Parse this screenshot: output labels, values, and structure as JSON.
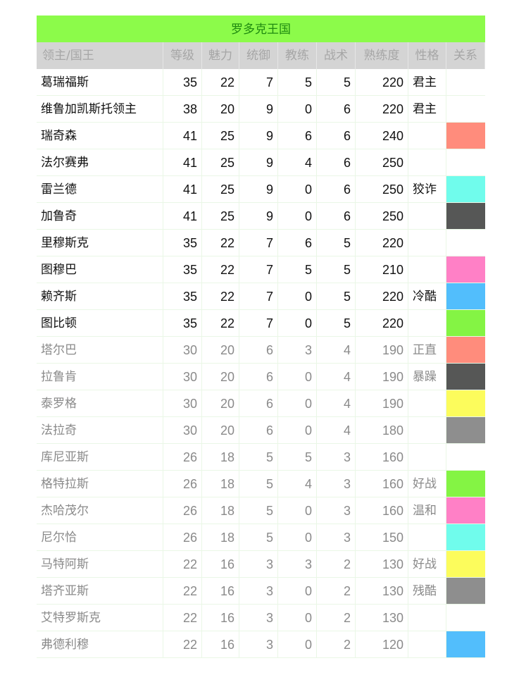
{
  "title": "罗多克王国",
  "headers": [
    "领主/国王",
    "等级",
    "魅力",
    "统御",
    "教练",
    "战术",
    "熟练度",
    "性格",
    "关系"
  ],
  "rows": [
    {
      "name": "葛瑞福斯",
      "v": [
        "35",
        "22",
        "7",
        "5",
        "5",
        "220"
      ],
      "trait": "君主",
      "rel": "",
      "active": true
    },
    {
      "name": "维鲁加凯斯托领主",
      "v": [
        "38",
        "20",
        "9",
        "0",
        "6",
        "220"
      ],
      "trait": "君主",
      "rel": "",
      "active": true
    },
    {
      "name": "瑞奇森",
      "v": [
        "41",
        "25",
        "9",
        "6",
        "6",
        "240"
      ],
      "trait": "",
      "rel": "#FF8C7C",
      "active": true
    },
    {
      "name": "法尔赛弗",
      "v": [
        "41",
        "25",
        "9",
        "4",
        "6",
        "250"
      ],
      "trait": "",
      "rel": "",
      "active": true
    },
    {
      "name": "雷兰德",
      "v": [
        "41",
        "25",
        "9",
        "0",
        "6",
        "250"
      ],
      "trait": "狡诈",
      "rel": "#70FCEC",
      "active": true
    },
    {
      "name": "加鲁奇",
      "v": [
        "41",
        "25",
        "9",
        "0",
        "6",
        "250"
      ],
      "trait": "",
      "rel": "#565756",
      "active": true
    },
    {
      "name": "里穆斯克",
      "v": [
        "35",
        "22",
        "7",
        "6",
        "5",
        "220"
      ],
      "trait": "",
      "rel": "",
      "active": true
    },
    {
      "name": "图穆巴",
      "v": [
        "35",
        "22",
        "7",
        "5",
        "5",
        "210"
      ],
      "trait": "",
      "rel": "#FF80C6",
      "active": true
    },
    {
      "name": "赖齐斯",
      "v": [
        "35",
        "22",
        "7",
        "0",
        "5",
        "220"
      ],
      "trait": "冷酷",
      "rel": "#52BEFC",
      "active": true
    },
    {
      "name": "图比顿",
      "v": [
        "35",
        "22",
        "7",
        "0",
        "5",
        "220"
      ],
      "trait": "",
      "rel": "#84F444",
      "active": true
    },
    {
      "name": "塔尔巴",
      "v": [
        "30",
        "20",
        "6",
        "3",
        "4",
        "190"
      ],
      "trait": "正直",
      "rel": "#FF8C7C",
      "active": false
    },
    {
      "name": "拉鲁肯",
      "v": [
        "30",
        "20",
        "6",
        "0",
        "4",
        "190"
      ],
      "trait": "暴躁",
      "rel": "#565756",
      "active": false
    },
    {
      "name": "泰罗格",
      "v": [
        "30",
        "20",
        "6",
        "0",
        "4",
        "190"
      ],
      "trait": "",
      "rel": "#FCFC5C",
      "active": false
    },
    {
      "name": "法拉奇",
      "v": [
        "30",
        "20",
        "6",
        "0",
        "4",
        "180"
      ],
      "trait": "",
      "rel": "#8E8E8E",
      "active": false
    },
    {
      "name": "库尼亚斯",
      "v": [
        "26",
        "18",
        "5",
        "5",
        "3",
        "160"
      ],
      "trait": "",
      "rel": "",
      "active": false
    },
    {
      "name": "格特拉斯",
      "v": [
        "26",
        "18",
        "5",
        "4",
        "3",
        "160"
      ],
      "trait": "好战",
      "rel": "#84F444",
      "active": false
    },
    {
      "name": "杰哈茂尔",
      "v": [
        "26",
        "18",
        "5",
        "0",
        "3",
        "160"
      ],
      "trait": "温和",
      "rel": "#FF80C6",
      "active": false
    },
    {
      "name": "尼尔恰",
      "v": [
        "26",
        "18",
        "5",
        "0",
        "3",
        "150"
      ],
      "trait": "",
      "rel": "#70FCEC",
      "active": false
    },
    {
      "name": "马特阿斯",
      "v": [
        "22",
        "16",
        "3",
        "3",
        "2",
        "130"
      ],
      "trait": "好战",
      "rel": "#FCFC5C",
      "active": false
    },
    {
      "name": "塔齐亚斯",
      "v": [
        "22",
        "16",
        "3",
        "0",
        "2",
        "130"
      ],
      "trait": "残酷",
      "rel": "#8E8E8E",
      "active": false
    },
    {
      "name": "艾特罗斯克",
      "v": [
        "22",
        "16",
        "3",
        "0",
        "2",
        "130"
      ],
      "trait": "",
      "rel": "",
      "active": false
    },
    {
      "name": "弗德利穆",
      "v": [
        "22",
        "16",
        "3",
        "0",
        "2",
        "120"
      ],
      "trait": "",
      "rel": "#52BEFC",
      "active": false
    }
  ]
}
